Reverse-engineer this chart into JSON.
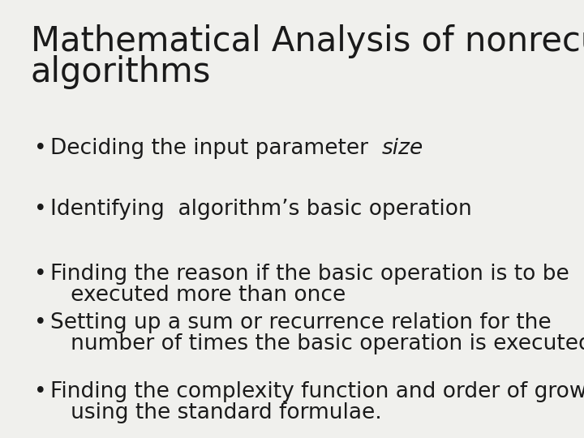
{
  "background_color": "#f0f0ed",
  "title_line1": "Mathematical Analysis of nonrecursive",
  "title_line2": "algorithms",
  "title_fontsize": 30,
  "title_color": "#1a1a1a",
  "bullet_fontsize": 19,
  "text_color": "#1a1a1a",
  "font_family": "DejaVu Sans",
  "bullet_symbol": "•",
  "items": [
    {
      "lines": [
        {
          "parts": [
            {
              "text": "Deciding the input parameter  ",
              "style": "normal"
            },
            {
              "text": "size",
              "style": "italic"
            }
          ]
        }
      ],
      "group": 1
    },
    {
      "lines": [
        {
          "parts": [
            {
              "text": "Identifying  algorithm’s basic operation",
              "style": "normal"
            }
          ]
        }
      ],
      "group": 2
    },
    {
      "lines": [
        {
          "parts": [
            {
              "text": "Finding the reason if the basic operation is to be",
              "style": "normal"
            }
          ]
        },
        {
          "parts": [
            {
              "text": "   executed more than once",
              "style": "normal"
            }
          ],
          "no_bullet": true
        }
      ],
      "group": 3
    },
    {
      "lines": [
        {
          "parts": [
            {
              "text": "Setting up a sum or recurrence relation for the",
              "style": "normal"
            }
          ]
        },
        {
          "parts": [
            {
              "text": "   number of times the basic operation is executed",
              "style": "normal"
            }
          ],
          "no_bullet": true
        }
      ],
      "group": 3
    },
    {
      "lines": [
        {
          "parts": [
            {
              "text": "Finding the complexity function and order of growth",
              "style": "normal"
            }
          ]
        },
        {
          "parts": [
            {
              "text": "   using the standard formulae.",
              "style": "normal"
            }
          ],
          "no_bullet": true
        }
      ],
      "group": 4
    }
  ]
}
